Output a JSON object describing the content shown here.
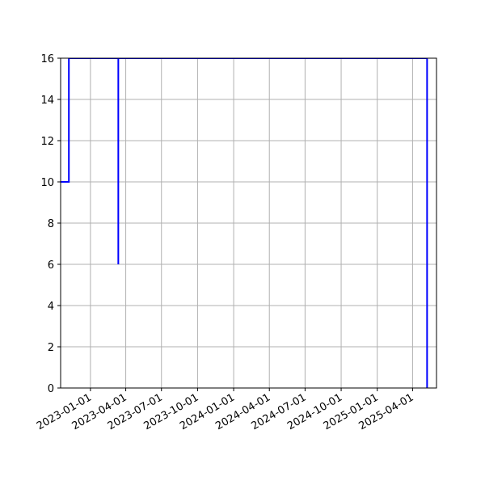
{
  "chart_data": {
    "type": "line",
    "title": "",
    "xlabel": "",
    "ylabel": "",
    "xlim": [
      "2022-10-17",
      "2025-06-01"
    ],
    "ylim": [
      0,
      16
    ],
    "grid": true,
    "line_color": "#0000ff",
    "x_ticks": [
      "2023-01-01",
      "2023-04-01",
      "2023-07-01",
      "2023-10-01",
      "2024-01-01",
      "2024-04-01",
      "2024-07-01",
      "2024-10-01",
      "2025-01-01",
      "2025-04-01"
    ],
    "y_ticks": [
      0,
      2,
      4,
      6,
      8,
      10,
      12,
      14,
      16
    ],
    "series": [
      {
        "x": [
          "2022-10-17",
          "2022-11-07",
          "2022-11-07",
          "2023-03-13",
          "2023-03-13",
          "2023-03-13",
          "2025-05-08",
          "2025-05-08",
          "2025-05-08"
        ],
        "y": [
          10,
          10,
          16,
          16,
          6,
          16,
          16,
          0,
          16
        ]
      }
    ]
  }
}
